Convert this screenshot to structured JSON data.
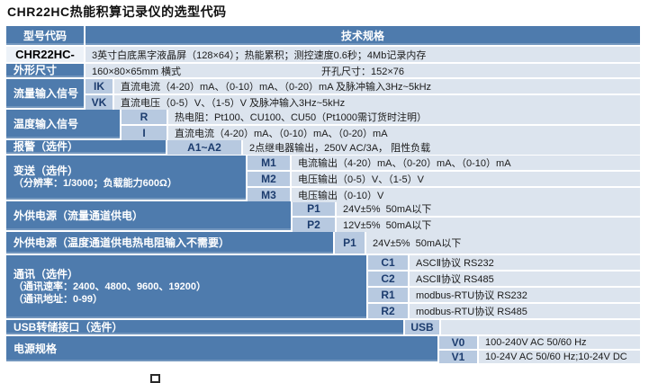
{
  "page_title": "CHR22HC热能积算记录仪的选型代码",
  "colors": {
    "label_blue": "#4e7bad",
    "code_cell_blue": "#b7c9e0",
    "spec_row_bg": "#dce4ee",
    "code_text": "#1c3c6e"
  },
  "table": {
    "header": {
      "model_code": "型号代码",
      "tech_spec": "技术规格"
    },
    "model_row": {
      "code": "CHR22HC-",
      "spec": "3英寸白底黑字液晶屏（128×64）；热能累积；测控速度0.6秒；4Mb记录内存"
    },
    "dimension_row": {
      "label": "外形尺寸",
      "spec_left": "160×80×65mm 横式",
      "spec_right": "开孔尺寸：152×76"
    },
    "flow_input": {
      "label": "流量输入信号",
      "options": [
        {
          "code": "IK",
          "spec": "直流电流（4-20）mA、（0-10）mA、（0-20）mA 及脉冲输入3Hz~5kHz"
        },
        {
          "code": "VK",
          "spec": "直流电压（0-5）V、（1-5）V 及脉冲输入3Hz~5kHz"
        }
      ]
    },
    "temp_input": {
      "label": "温度输入信号",
      "options": [
        {
          "code": "R",
          "spec": "热电阻：Pt100、CU100、CU50（Pt1000需订货时注明）"
        },
        {
          "code": "I",
          "spec": "直流电流（4-20）mA、（0-10）mA、（0-20）mA"
        }
      ]
    },
    "alarm": {
      "label": "报警（选件）",
      "options": [
        {
          "code": "A1~A2",
          "spec": "2点继电器输出，250V AC/3A， 阻性负载"
        }
      ]
    },
    "transmit": {
      "label_line1": "变送（选件）",
      "label_line2": "（分辨率：1/3000；负载能力600Ω）",
      "options": [
        {
          "code": "M1",
          "spec": "电流输出（4-20）mA、（0-20）mA、（0-10）mA"
        },
        {
          "code": "M2",
          "spec": "电压输出（0-5）V、（1-5）V"
        },
        {
          "code": "M3",
          "spec": "电压输出（0-10）V"
        }
      ]
    },
    "ext_power_flow": {
      "label": "外供电源（流量通道供电）",
      "options": [
        {
          "code": "P1",
          "spec": "24V±5%  50mA以下"
        },
        {
          "code": "P2",
          "spec": "12V±5%  50mA以下"
        }
      ]
    },
    "ext_power_temp": {
      "label": "外供电源（温度通道供电热电阻输入不需要）",
      "options": [
        {
          "code": "P1",
          "spec": "24V±5%  50mA以下"
        }
      ]
    },
    "comm": {
      "label_line1": "通讯（选件）",
      "label_line2": "（通讯速率：2400、4800、9600、19200）",
      "label_line3": "（通讯地址：0-99）",
      "options": [
        {
          "code": "C1",
          "spec": "ASCⅡ协议 RS232"
        },
        {
          "code": "C2",
          "spec": "ASCⅡ协议 RS485"
        },
        {
          "code": "R1",
          "spec": "modbus-RTU协议 RS232"
        },
        {
          "code": "R2",
          "spec": "modbus-RTU协议 RS485"
        }
      ]
    },
    "usb": {
      "label": "USB转储接口（选件）",
      "options": [
        {
          "code": "USB",
          "spec": ""
        }
      ]
    },
    "power": {
      "label": "电源规格",
      "options": [
        {
          "code": "V0",
          "spec": "100-240V AC 50/60 Hz"
        },
        {
          "code": "V1",
          "spec": "10-24V AC 50/60 Hz;10-24V DC"
        }
      ]
    }
  }
}
